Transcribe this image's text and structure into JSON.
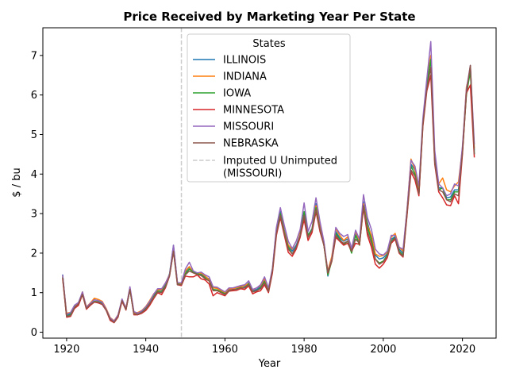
{
  "chart_data": {
    "type": "line",
    "title": "Price Received by Marketing Year Per State",
    "xlabel": "Year",
    "ylabel": "$ / bu",
    "xlim": [
      1914,
      2028.5
    ],
    "ylim": [
      -0.15,
      7.7
    ],
    "xticks": [
      1920,
      1940,
      1960,
      1980,
      2000,
      2020
    ],
    "yticks": [
      0,
      1,
      2,
      3,
      4,
      5,
      6,
      7
    ],
    "grid": false,
    "legend": {
      "title": "States",
      "placement": "upper-center"
    },
    "vline": {
      "x": 1949,
      "label": "Imputed U Unimputed (MISSOURI)",
      "color": "#cccccc",
      "style": "dashed"
    },
    "x": [
      1919,
      1920,
      1921,
      1922,
      1923,
      1924,
      1925,
      1926,
      1927,
      1928,
      1929,
      1930,
      1931,
      1932,
      1933,
      1934,
      1935,
      1936,
      1937,
      1938,
      1939,
      1940,
      1941,
      1942,
      1943,
      1944,
      1945,
      1946,
      1947,
      1948,
      1949,
      1950,
      1951,
      1952,
      1953,
      1954,
      1955,
      1956,
      1957,
      1958,
      1959,
      1960,
      1961,
      1962,
      1963,
      1964,
      1965,
      1966,
      1967,
      1968,
      1969,
      1970,
      1971,
      1972,
      1973,
      1974,
      1975,
      1976,
      1977,
      1978,
      1979,
      1980,
      1981,
      1982,
      1983,
      1984,
      1985,
      1986,
      1987,
      1988,
      1989,
      1990,
      1991,
      1992,
      1993,
      1994,
      1995,
      1996,
      1997,
      1998,
      1999,
      2000,
      2001,
      2002,
      2003,
      2004,
      2005,
      2006,
      2007,
      2008,
      2009,
      2010,
      2011,
      2012,
      2013,
      2014,
      2015,
      2016,
      2017,
      2018,
      2019,
      2020,
      2021,
      2022,
      2023
    ],
    "series": [
      {
        "name": "ILLINOIS",
        "color": "#1f77b4",
        "values": [
          1.46,
          0.42,
          0.48,
          0.68,
          0.75,
          1.0,
          0.62,
          0.72,
          0.82,
          0.8,
          0.75,
          0.58,
          0.35,
          0.27,
          0.42,
          0.82,
          0.6,
          1.1,
          0.5,
          0.48,
          0.53,
          0.62,
          0.75,
          0.92,
          1.07,
          1.06,
          1.2,
          1.48,
          2.2,
          1.25,
          1.22,
          1.52,
          1.65,
          1.53,
          1.48,
          1.47,
          1.4,
          1.35,
          1.14,
          1.12,
          1.06,
          1.0,
          1.08,
          1.1,
          1.12,
          1.17,
          1.15,
          1.25,
          1.05,
          1.08,
          1.15,
          1.3,
          1.07,
          1.58,
          2.61,
          3.05,
          2.58,
          2.2,
          2.05,
          2.2,
          2.45,
          3.05,
          2.45,
          2.62,
          3.25,
          2.7,
          2.28,
          1.42,
          1.88,
          2.55,
          2.39,
          2.3,
          2.36,
          2.06,
          2.5,
          2.27,
          3.3,
          2.78,
          2.41,
          1.95,
          1.85,
          1.88,
          1.98,
          2.35,
          2.42,
          2.1,
          2.0,
          3.0,
          4.25,
          4.1,
          3.6,
          5.3,
          6.25,
          6.95,
          4.35,
          3.65,
          3.65,
          3.4,
          3.42,
          3.6,
          3.6,
          4.6,
          6.1,
          6.7,
          4.6
        ]
      },
      {
        "name": "INDIANA",
        "color": "#ff7f0e",
        "values": [
          1.42,
          0.48,
          0.5,
          0.66,
          0.72,
          1.02,
          0.64,
          0.74,
          0.86,
          0.83,
          0.78,
          0.6,
          0.37,
          0.29,
          0.44,
          0.8,
          0.62,
          1.12,
          0.48,
          0.5,
          0.55,
          0.65,
          0.8,
          0.97,
          1.07,
          1.08,
          1.25,
          1.46,
          2.15,
          1.25,
          1.22,
          1.55,
          1.66,
          1.5,
          1.47,
          1.5,
          1.42,
          1.33,
          1.12,
          1.11,
          1.05,
          1.0,
          1.1,
          1.09,
          1.13,
          1.15,
          1.18,
          1.23,
          1.07,
          1.12,
          1.18,
          1.35,
          1.09,
          1.6,
          2.58,
          3.0,
          2.55,
          2.2,
          2.1,
          2.3,
          2.55,
          2.95,
          2.4,
          2.6,
          3.2,
          2.7,
          2.25,
          1.55,
          1.92,
          2.62,
          2.45,
          2.32,
          2.41,
          2.12,
          2.55,
          2.3,
          3.25,
          2.7,
          2.45,
          1.98,
          1.92,
          1.94,
          2.02,
          2.4,
          2.5,
          2.15,
          2.05,
          3.1,
          4.38,
          4.12,
          3.55,
          5.3,
          6.35,
          7.0,
          4.45,
          3.75,
          3.9,
          3.6,
          3.55,
          3.7,
          3.8,
          4.65,
          6.2,
          6.6,
          4.65
        ]
      },
      {
        "name": "IOWA",
        "color": "#2ca02c",
        "values": [
          1.4,
          0.4,
          0.45,
          0.64,
          0.7,
          0.98,
          0.6,
          0.7,
          0.78,
          0.77,
          0.72,
          0.56,
          0.32,
          0.25,
          0.4,
          0.8,
          0.58,
          1.08,
          0.46,
          0.46,
          0.5,
          0.6,
          0.74,
          0.9,
          1.04,
          1.02,
          1.17,
          1.44,
          2.1,
          1.22,
          1.2,
          1.48,
          1.6,
          1.52,
          1.48,
          1.45,
          1.37,
          1.3,
          1.08,
          1.07,
          1.02,
          0.97,
          1.04,
          1.06,
          1.09,
          1.13,
          1.12,
          1.22,
          1.02,
          1.05,
          1.12,
          1.28,
          1.03,
          1.55,
          2.55,
          3.0,
          2.52,
          2.15,
          1.98,
          2.15,
          2.45,
          3.05,
          2.45,
          2.6,
          3.15,
          2.6,
          2.2,
          1.45,
          1.8,
          2.5,
          2.35,
          2.22,
          2.3,
          2.0,
          2.45,
          2.2,
          3.2,
          2.65,
          2.35,
          1.85,
          1.75,
          1.8,
          1.95,
          2.3,
          2.4,
          2.05,
          1.95,
          3.0,
          4.2,
          4.0,
          3.5,
          5.25,
          6.25,
          6.9,
          4.35,
          3.6,
          3.65,
          3.35,
          3.35,
          3.55,
          3.55,
          4.55,
          6.0,
          6.6,
          4.5
        ]
      },
      {
        "name": "MINNESOTA",
        "color": "#d62728",
        "values": [
          1.35,
          0.38,
          0.4,
          0.6,
          0.68,
          0.95,
          0.58,
          0.68,
          0.76,
          0.74,
          0.7,
          0.55,
          0.3,
          0.24,
          0.38,
          0.78,
          0.56,
          1.1,
          0.44,
          0.44,
          0.48,
          0.55,
          0.68,
          0.85,
          1.0,
          0.95,
          1.13,
          1.42,
          2.05,
          1.2,
          1.18,
          1.42,
          1.4,
          1.4,
          1.45,
          1.35,
          1.32,
          1.22,
          0.92,
          1.0,
          0.96,
          0.92,
          1.04,
          1.05,
          1.06,
          1.1,
          1.08,
          1.17,
          0.97,
          1.02,
          1.05,
          1.2,
          1.0,
          1.5,
          2.45,
          2.9,
          2.45,
          2.02,
          1.92,
          2.1,
          2.4,
          2.85,
          2.32,
          2.52,
          3.05,
          2.55,
          2.2,
          1.5,
          1.8,
          2.4,
          2.3,
          2.2,
          2.25,
          2.05,
          2.25,
          2.22,
          3.15,
          2.45,
          2.15,
          1.72,
          1.62,
          1.72,
          1.88,
          2.25,
          2.35,
          2.0,
          1.9,
          2.95,
          4.05,
          3.85,
          3.45,
          5.2,
          6.1,
          6.5,
          4.25,
          3.55,
          3.4,
          3.22,
          3.2,
          3.45,
          3.25,
          4.5,
          6.05,
          6.25,
          4.42
        ]
      },
      {
        "name": "MISSOURI",
        "color": "#9467bd",
        "values": [
          1.45,
          0.45,
          0.5,
          0.68,
          0.75,
          1.02,
          0.63,
          0.73,
          0.82,
          0.8,
          0.76,
          0.58,
          0.36,
          0.28,
          0.44,
          0.84,
          0.6,
          1.15,
          0.52,
          0.48,
          0.54,
          0.64,
          0.78,
          0.96,
          1.1,
          1.1,
          1.25,
          1.45,
          2.2,
          1.25,
          1.25,
          1.6,
          1.77,
          1.55,
          1.5,
          1.52,
          1.45,
          1.4,
          1.15,
          1.14,
          1.08,
          1.02,
          1.12,
          1.12,
          1.15,
          1.18,
          1.2,
          1.3,
          1.08,
          1.12,
          1.2,
          1.4,
          1.12,
          1.62,
          2.65,
          3.15,
          2.7,
          2.3,
          2.12,
          2.3,
          2.6,
          3.27,
          2.55,
          2.8,
          3.4,
          2.8,
          2.3,
          1.52,
          1.85,
          2.65,
          2.5,
          2.42,
          2.47,
          2.12,
          2.58,
          2.35,
          3.48,
          2.9,
          2.6,
          2.1,
          1.98,
          1.95,
          2.05,
          2.45,
          2.45,
          2.15,
          2.1,
          3.1,
          4.35,
          4.2,
          3.7,
          5.4,
          6.4,
          7.35,
          4.6,
          3.75,
          3.65,
          3.45,
          3.5,
          3.75,
          3.7,
          4.7,
          6.15,
          6.75,
          4.75
        ]
      },
      {
        "name": "NEBRASKA",
        "color": "#8c564b",
        "values": [
          1.38,
          0.4,
          0.42,
          0.62,
          0.72,
          0.96,
          0.6,
          0.7,
          0.77,
          0.76,
          0.71,
          0.56,
          0.33,
          0.25,
          0.4,
          0.8,
          0.57,
          1.08,
          0.46,
          0.45,
          0.5,
          0.58,
          0.72,
          0.88,
          1.02,
          1.0,
          1.15,
          1.42,
          2.05,
          1.2,
          1.2,
          1.45,
          1.55,
          1.5,
          1.46,
          1.43,
          1.35,
          1.3,
          1.05,
          1.05,
          1.0,
          0.95,
          1.05,
          1.08,
          1.08,
          1.12,
          1.12,
          1.2,
          1.02,
          1.05,
          1.1,
          1.25,
          1.03,
          1.55,
          2.5,
          2.95,
          2.5,
          2.1,
          1.98,
          2.15,
          2.45,
          2.95,
          2.4,
          2.58,
          3.1,
          2.6,
          2.2,
          1.52,
          1.82,
          2.45,
          2.32,
          2.25,
          2.3,
          2.05,
          2.35,
          2.25,
          3.2,
          2.55,
          2.25,
          1.85,
          1.72,
          1.78,
          1.92,
          2.28,
          2.38,
          2.02,
          1.92,
          3.0,
          4.1,
          3.95,
          3.5,
          5.25,
          6.15,
          6.7,
          4.3,
          3.6,
          3.55,
          3.35,
          3.3,
          3.5,
          3.45,
          4.55,
          6.05,
          6.75,
          4.5
        ]
      }
    ]
  }
}
